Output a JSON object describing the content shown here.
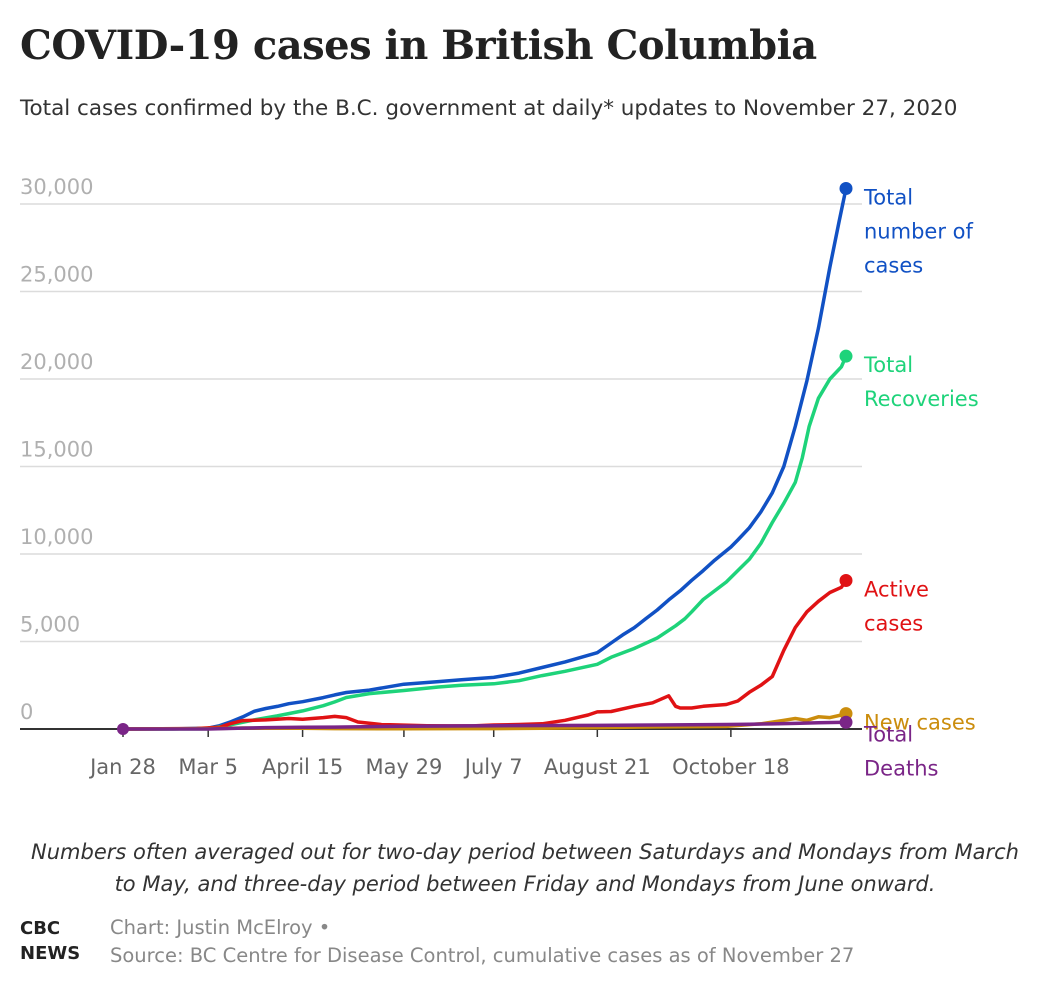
{
  "title": "COVID-19 cases in British Columbia",
  "subtitle": "Total cases confirmed by the B.C. government at daily* updates to November 27, 2020",
  "note": "Numbers often averaged out for two-day period between Saturdays and Mondays from March to May, and three-day period between Friday and Mondays from June onward.",
  "logo": {
    "line1": "CBC",
    "line2": "NEWS"
  },
  "credits": {
    "author": "Chart: Justin McElroy •",
    "source": "Source: BC Centre for Disease Control, cumulative cases as of November 27"
  },
  "chart_data": {
    "type": "line",
    "title": "COVID-19 cases in British Columbia",
    "xlabel": "",
    "ylabel": "",
    "x_unit": "day of 2020",
    "xlim": [
      "2020-01-28",
      "2020-11-27"
    ],
    "ylim": [
      0,
      30000
    ],
    "grid": true,
    "legend": "end-of-line labels",
    "x_ticks": [
      {
        "label": "Jan 28",
        "day": 28
      },
      {
        "label": "Mar 5",
        "day": 65
      },
      {
        "label": "April 15",
        "day": 106
      },
      {
        "label": "May 29",
        "day": 150
      },
      {
        "label": "July 7",
        "day": 189
      },
      {
        "label": "August 21",
        "day": 234
      },
      {
        "label": "October 18",
        "day": 292
      }
    ],
    "y_ticks": [
      {
        "label": "0",
        "value": 0
      },
      {
        "label": "5,000",
        "value": 5000
      },
      {
        "label": "10,000",
        "value": 10000
      },
      {
        "label": "15,000",
        "value": 15000
      },
      {
        "label": "20,000",
        "value": 20000
      },
      {
        "label": "25,000",
        "value": 25000
      },
      {
        "label": "30,000",
        "value": 30000
      }
    ],
    "series": [
      {
        "name": "Total number of cases",
        "label_lines": [
          "Total",
          "number of",
          "cases"
        ],
        "color": "#1151c4",
        "points": [
          [
            28,
            1
          ],
          [
            50,
            8
          ],
          [
            65,
            53
          ],
          [
            70,
            186
          ],
          [
            75,
            424
          ],
          [
            80,
            692
          ],
          [
            85,
            1013
          ],
          [
            90,
            1174
          ],
          [
            95,
            1291
          ],
          [
            100,
            1445
          ],
          [
            106,
            1561
          ],
          [
            115,
            1795
          ],
          [
            120,
            1948
          ],
          [
            125,
            2087
          ],
          [
            135,
            2224
          ],
          [
            150,
            2558
          ],
          [
            165,
            2709
          ],
          [
            175,
            2819
          ],
          [
            189,
            2947
          ],
          [
            200,
            3192
          ],
          [
            210,
            3512
          ],
          [
            220,
            3834
          ],
          [
            234,
            4358
          ],
          [
            240,
            4915
          ],
          [
            245,
            5375
          ],
          [
            250,
            5785
          ],
          [
            255,
            6300
          ],
          [
            260,
            6800
          ],
          [
            265,
            7379
          ],
          [
            270,
            7900
          ],
          [
            275,
            8500
          ],
          [
            280,
            9050
          ],
          [
            285,
            9650
          ],
          [
            292,
            10400
          ],
          [
            295,
            10800
          ],
          [
            300,
            11500
          ],
          [
            305,
            12400
          ],
          [
            310,
            13500
          ],
          [
            315,
            15000
          ],
          [
            320,
            17300
          ],
          [
            325,
            19900
          ],
          [
            330,
            22900
          ],
          [
            335,
            26400
          ],
          [
            339,
            29000
          ],
          [
            342,
            30884
          ]
        ]
      },
      {
        "name": "Total Recoveries",
        "label_lines": [
          "Total",
          "Recoveries"
        ],
        "color": "#1ed37a",
        "points": [
          [
            28,
            0
          ],
          [
            65,
            5
          ],
          [
            75,
            250
          ],
          [
            85,
            520
          ],
          [
            95,
            751
          ],
          [
            106,
            1034
          ],
          [
            115,
            1331
          ],
          [
            120,
            1546
          ],
          [
            125,
            1800
          ],
          [
            135,
            2022
          ],
          [
            150,
            2200
          ],
          [
            165,
            2400
          ],
          [
            175,
            2500
          ],
          [
            189,
            2581
          ],
          [
            200,
            2760
          ],
          [
            210,
            3050
          ],
          [
            220,
            3300
          ],
          [
            234,
            3700
          ],
          [
            240,
            4100
          ],
          [
            250,
            4600
          ],
          [
            260,
            5200
          ],
          [
            268,
            5900
          ],
          [
            272,
            6300
          ],
          [
            275,
            6700
          ],
          [
            280,
            7400
          ],
          [
            290,
            8400
          ],
          [
            300,
            9700
          ],
          [
            305,
            10600
          ],
          [
            310,
            11800
          ],
          [
            315,
            12900
          ],
          [
            320,
            14100
          ],
          [
            323,
            15500
          ],
          [
            326,
            17300
          ],
          [
            330,
            18900
          ],
          [
            335,
            20000
          ],
          [
            340,
            20700
          ],
          [
            342,
            21304
          ]
        ]
      },
      {
        "name": "Active cases",
        "label_lines": [
          "Active",
          "cases"
        ],
        "color": "#e01214",
        "points": [
          [
            28,
            0
          ],
          [
            60,
            30
          ],
          [
            70,
            100
          ],
          [
            75,
            320
          ],
          [
            80,
            480
          ],
          [
            90,
            520
          ],
          [
            100,
            600
          ],
          [
            106,
            560
          ],
          [
            115,
            650
          ],
          [
            120,
            720
          ],
          [
            125,
            650
          ],
          [
            130,
            400
          ],
          [
            140,
            260
          ],
          [
            150,
            220
          ],
          [
            160,
            190
          ],
          [
            170,
            180
          ],
          [
            180,
            180
          ],
          [
            189,
            230
          ],
          [
            200,
            260
          ],
          [
            210,
            300
          ],
          [
            220,
            500
          ],
          [
            230,
            800
          ],
          [
            234,
            980
          ],
          [
            240,
            1000
          ],
          [
            250,
            1300
          ],
          [
            258,
            1500
          ],
          [
            265,
            1900
          ],
          [
            268,
            1300
          ],
          [
            270,
            1200
          ],
          [
            275,
            1200
          ],
          [
            280,
            1300
          ],
          [
            290,
            1400
          ],
          [
            295,
            1600
          ],
          [
            300,
            2100
          ],
          [
            305,
            2500
          ],
          [
            310,
            3000
          ],
          [
            315,
            4500
          ],
          [
            320,
            5800
          ],
          [
            325,
            6700
          ],
          [
            330,
            7300
          ],
          [
            335,
            7800
          ],
          [
            340,
            8100
          ],
          [
            342,
            8485
          ]
        ]
      },
      {
        "name": "New cases",
        "label_lines": [
          "New cases"
        ],
        "color": "#cb8d0d",
        "points": [
          [
            28,
            0
          ],
          [
            65,
            20
          ],
          [
            80,
            60
          ],
          [
            90,
            40
          ],
          [
            106,
            40
          ],
          [
            120,
            20
          ],
          [
            150,
            10
          ],
          [
            175,
            20
          ],
          [
            189,
            20
          ],
          [
            210,
            40
          ],
          [
            234,
            80
          ],
          [
            260,
            120
          ],
          [
            290,
            150
          ],
          [
            305,
            300
          ],
          [
            315,
            500
          ],
          [
            320,
            600
          ],
          [
            325,
            500
          ],
          [
            330,
            700
          ],
          [
            335,
            650
          ],
          [
            340,
            800
          ],
          [
            342,
            877
          ]
        ]
      },
      {
        "name": "Total Deaths",
        "label_lines": [
          "Total",
          "Deaths"
        ],
        "color": "#7a2587",
        "points": [
          [
            28,
            0
          ],
          [
            65,
            1
          ],
          [
            80,
            50
          ],
          [
            90,
            80
          ],
          [
            106,
            100
          ],
          [
            120,
            110
          ],
          [
            150,
            160
          ],
          [
            189,
            190
          ],
          [
            234,
            208
          ],
          [
            260,
            230
          ],
          [
            290,
            260
          ],
          [
            300,
            273
          ],
          [
            310,
            290
          ],
          [
            320,
            320
          ],
          [
            330,
            360
          ],
          [
            342,
            384
          ]
        ]
      }
    ]
  }
}
